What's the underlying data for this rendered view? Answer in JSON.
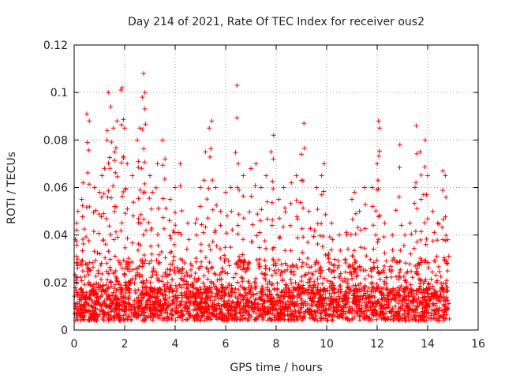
{
  "chart_data": {
    "type": "scatter",
    "title": "Day 214 of 2021, Rate Of TEC Index for receiver ous2",
    "xlabel": "GPS time / hours",
    "ylabel": "ROTI / TECUs",
    "xlim": [
      0,
      16
    ],
    "ylim": [
      0,
      0.12
    ],
    "x_ticks": [
      0,
      2,
      4,
      6,
      8,
      10,
      12,
      14,
      16
    ],
    "y_ticks": [
      0,
      0.02,
      0.04,
      0.06,
      0.08,
      0.1,
      0.12
    ],
    "x_tick_labels": [
      "0",
      "2",
      "4",
      "6",
      "8",
      "10",
      "12",
      "14",
      "16"
    ],
    "y_tick_labels": [
      "0",
      "0.02",
      "0.04",
      "0.06",
      "0.08",
      "0.1",
      "0.12"
    ],
    "grid": true,
    "marker": "+",
    "series_color": "#ff0000",
    "data_x_range": [
      0,
      14.8
    ],
    "series": [
      {
        "name": "ROTI",
        "points": [
          [
            0.1,
            0.045
          ],
          [
            0.15,
            0.05
          ],
          [
            0.3,
            0.055
          ],
          [
            0.35,
            0.062
          ],
          [
            0.5,
            0.091
          ],
          [
            0.6,
            0.088
          ],
          [
            0.8,
            0.06
          ],
          [
            1.0,
            0.058
          ],
          [
            1.1,
            0.065
          ],
          [
            1.2,
            0.068
          ],
          [
            1.3,
            0.08
          ],
          [
            1.35,
            0.1
          ],
          [
            1.45,
            0.094
          ],
          [
            1.55,
            0.085
          ],
          [
            1.6,
            0.075
          ],
          [
            1.7,
            0.088
          ],
          [
            1.85,
            0.101
          ],
          [
            1.9,
            0.102
          ],
          [
            2.0,
            0.085
          ],
          [
            2.1,
            0.07
          ],
          [
            2.3,
            0.065
          ],
          [
            2.5,
            0.08
          ],
          [
            2.6,
            0.085
          ],
          [
            2.7,
            0.098
          ],
          [
            2.75,
            0.108
          ],
          [
            2.8,
            0.1
          ],
          [
            3.0,
            0.065
          ],
          [
            3.1,
            0.058
          ],
          [
            3.3,
            0.07
          ],
          [
            3.5,
            0.08
          ],
          [
            3.6,
            0.072
          ],
          [
            3.8,
            0.055
          ],
          [
            4.0,
            0.06
          ],
          [
            4.2,
            0.07
          ],
          [
            4.5,
            0.045
          ],
          [
            4.8,
            0.045
          ],
          [
            5.0,
            0.06
          ],
          [
            5.2,
            0.075
          ],
          [
            5.35,
            0.085
          ],
          [
            5.45,
            0.088
          ],
          [
            5.6,
            0.06
          ],
          [
            5.8,
            0.05
          ],
          [
            6.0,
            0.058
          ],
          [
            6.2,
            0.06
          ],
          [
            6.45,
            0.103
          ],
          [
            6.5,
            0.07
          ],
          [
            6.7,
            0.065
          ],
          [
            7.0,
            0.068
          ],
          [
            7.2,
            0.07
          ],
          [
            7.4,
            0.06
          ],
          [
            7.6,
            0.065
          ],
          [
            7.8,
            0.075
          ],
          [
            7.9,
            0.082
          ],
          [
            8.1,
            0.055
          ],
          [
            8.3,
            0.06
          ],
          [
            8.6,
            0.062
          ],
          [
            8.8,
            0.065
          ],
          [
            9.0,
            0.074
          ],
          [
            9.1,
            0.087
          ],
          [
            9.3,
            0.05
          ],
          [
            9.6,
            0.06
          ],
          [
            9.8,
            0.065
          ],
          [
            9.9,
            0.07
          ],
          [
            10.2,
            0.045
          ],
          [
            10.5,
            0.04
          ],
          [
            10.8,
            0.04
          ],
          [
            11.0,
            0.055
          ],
          [
            11.1,
            0.058
          ],
          [
            11.3,
            0.05
          ],
          [
            11.5,
            0.06
          ],
          [
            11.8,
            0.06
          ],
          [
            12.0,
            0.07
          ],
          [
            12.05,
            0.088
          ],
          [
            12.1,
            0.085
          ],
          [
            12.3,
            0.045
          ],
          [
            12.6,
            0.04
          ],
          [
            12.9,
            0.078
          ],
          [
            13.1,
            0.04
          ],
          [
            13.3,
            0.045
          ],
          [
            13.5,
            0.06
          ],
          [
            13.55,
            0.086
          ],
          [
            13.7,
            0.075
          ],
          [
            13.9,
            0.08
          ],
          [
            14.0,
            0.065
          ],
          [
            14.2,
            0.05
          ],
          [
            14.4,
            0.045
          ],
          [
            14.6,
            0.067
          ],
          [
            14.7,
            0.065
          ],
          [
            14.8,
            0.038
          ]
        ]
      }
    ]
  }
}
